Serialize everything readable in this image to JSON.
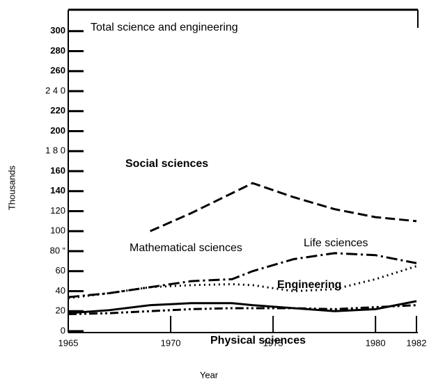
{
  "chart_data": {
    "type": "line",
    "x": [
      1965,
      1967,
      1969,
      1971,
      1973,
      1974,
      1976,
      1978,
      1980,
      1982
    ],
    "series": [
      {
        "name": "Social sciences",
        "color": "#000000",
        "dash": "14,6",
        "values": [
          null,
          null,
          100,
          118,
          138,
          148,
          134,
          122,
          114,
          110
        ]
      },
      {
        "name": "Life sciences",
        "color": "#000000",
        "dash": "16,5,3,5",
        "values": [
          34,
          38,
          44,
          50,
          52,
          60,
          72,
          78,
          76,
          68
        ]
      },
      {
        "name": "Engineering",
        "color": "#000000",
        "dash": "2,5",
        "values": [
          33,
          38,
          44,
          46,
          47,
          46,
          40,
          42,
          52,
          65
        ]
      },
      {
        "name": "Mathematical sciences",
        "color": "#000000",
        "dash": "",
        "values": [
          18,
          21,
          26,
          28,
          28,
          26,
          23,
          20,
          22,
          30
        ]
      },
      {
        "name": "Physical sciences",
        "color": "#000000",
        "dash": "12,4,3,4,3,4",
        "values": [
          17,
          18,
          20,
          22,
          23,
          23,
          23,
          22,
          24,
          26
        ]
      }
    ],
    "annotations": [
      "Total science and engineering"
    ],
    "xlabel": "Year",
    "ylabel": "Thousands",
    "xlim": [
      1965,
      1982
    ],
    "xticks": [
      1965,
      1970,
      1975,
      1980,
      1982
    ],
    "ylim": [
      0,
      320
    ],
    "yticks": [
      0,
      20,
      40,
      60,
      {
        "value": 80,
        "label": "80 “"
      },
      100,
      120,
      140,
      160,
      {
        "value": 180,
        "label": "1 8 0"
      },
      200,
      220,
      {
        "value": 240,
        "label": "2 4 0"
      },
      260,
      280,
      300
    ]
  }
}
